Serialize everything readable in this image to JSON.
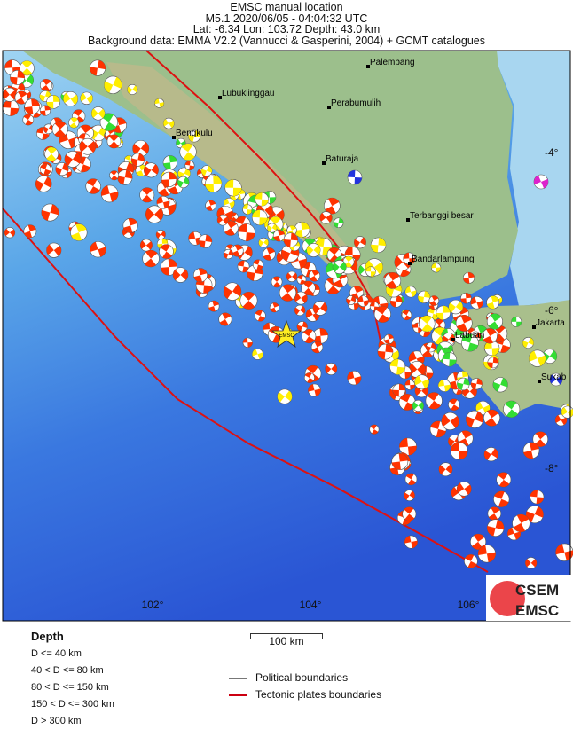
{
  "header": {
    "line1": "EMSC manual location",
    "line2": "M5.1  2020/06/05 - 04:04:32 UTC",
    "line3": "Lat: -6.34    Lon: 103.72     Depth:  43.0 km",
    "line4": "Background data: EMMA V2.2 (Vannucci & Gasperini, 2004) + GCMT catalogues"
  },
  "map": {
    "cities": [
      "Palembang",
      "Lubuklinggau",
      "Perabumulih",
      "Bengkulu",
      "Baturaja",
      "Terbanggi besar",
      "Bandarlampung",
      "Labuan",
      "Jakarta",
      "Sukab"
    ],
    "lon_ticks": [
      "102°",
      "104°",
      "106°"
    ],
    "lat_ticks": [
      "-4°",
      "-6°",
      "-8°"
    ],
    "epicenter_label": "EMSC",
    "colors": {
      "d40": "#ff3300",
      "d80": "#ffee00",
      "d150": "#33dd33",
      "d300": "#2233dd",
      "d300plus": "#dd22cc",
      "tectonic": "#dd1111",
      "political": "#777777",
      "land": "#9cbf8c",
      "sea": "#8cc7ea",
      "deep": "#2a5fd8"
    }
  },
  "logo": {
    "top": "CSEM",
    "bottom": "EMSC"
  },
  "legend": {
    "depth_title": "Depth",
    "depth_items": [
      "D <= 40 km",
      "40 < D <= 80 km",
      "80 < D <= 150 km",
      "150 < D <= 300 km",
      "D > 300 km"
    ],
    "scale": "100 km",
    "political": "Political boundaries",
    "tectonic": "Tectonic plates boundaries"
  }
}
